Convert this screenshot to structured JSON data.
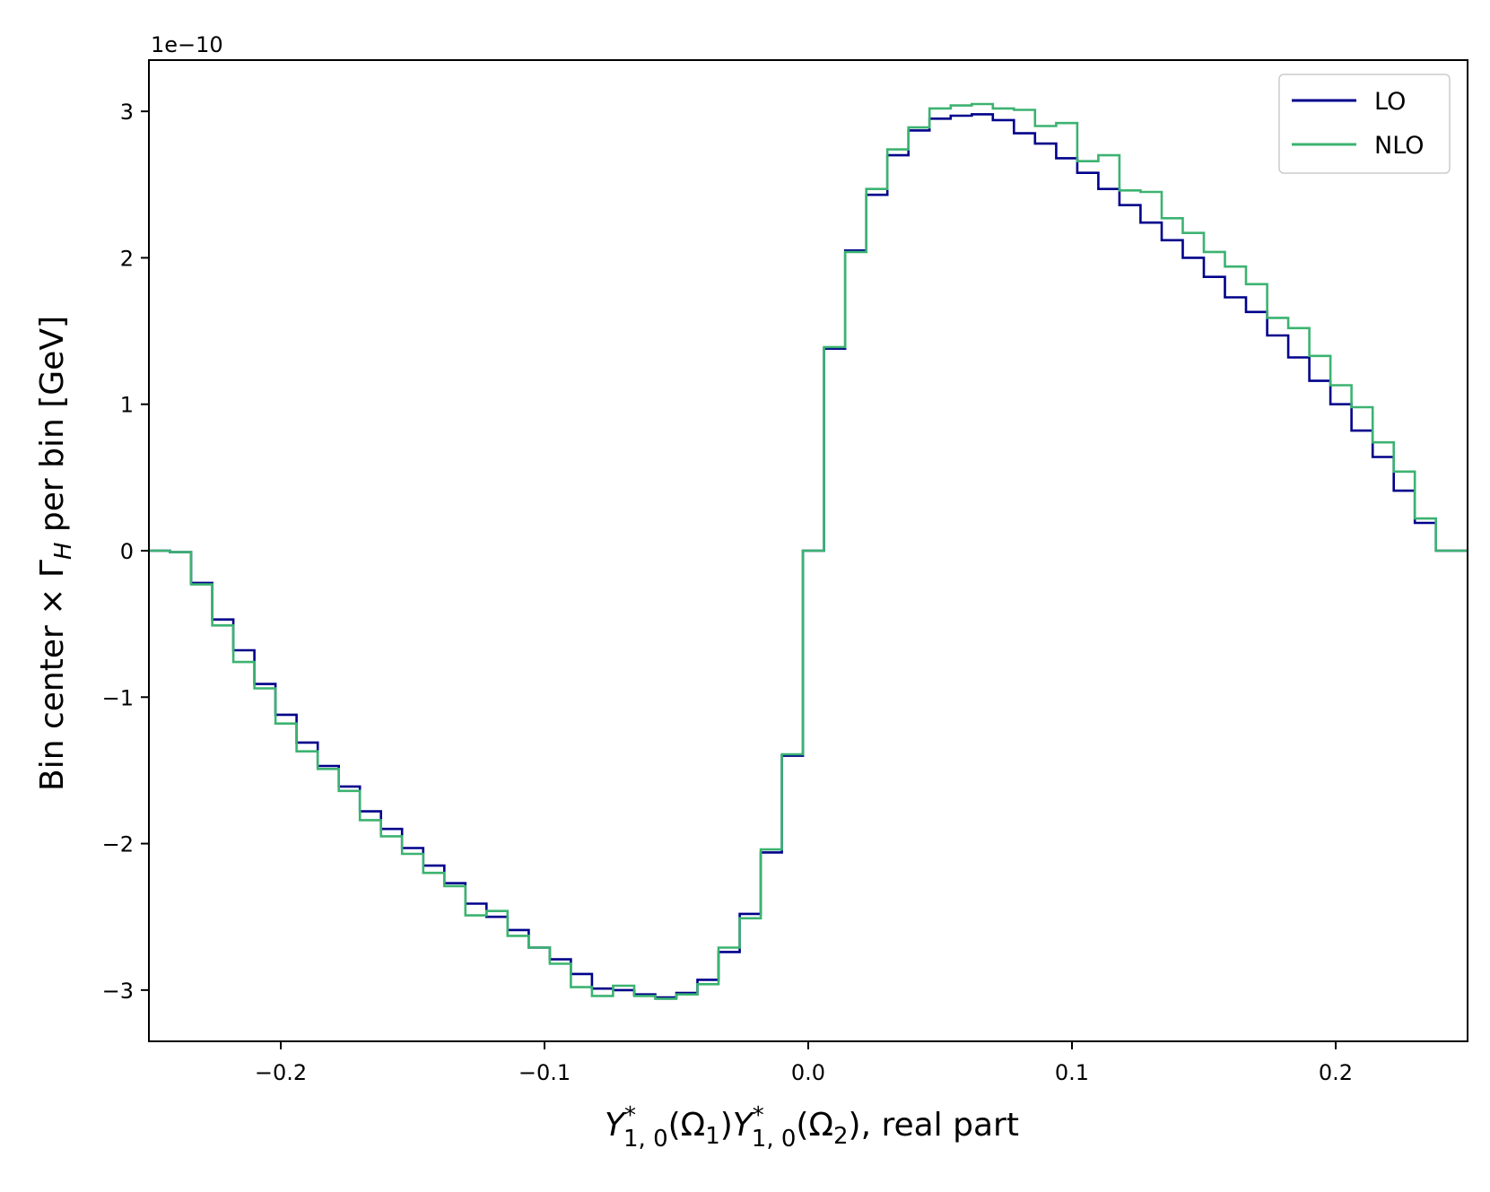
{
  "chart_data": {
    "type": "line",
    "step": "post",
    "offset_label": "1e−10",
    "ylabel": {
      "pre": "Bin center × Γ",
      "sub": "H",
      "post": " per bin [GeV]"
    },
    "xlabel": {
      "Y": "Y",
      "star": "*",
      "sub": "1, 0",
      "omega1": "(Ω",
      "omega1_sub": "1",
      "close": ")",
      "omega2": "(Ω",
      "omega2_sub": "2",
      "tail": "), real part"
    },
    "xlim": [
      -0.25,
      0.25
    ],
    "ylim": [
      -3.35,
      3.35
    ],
    "xticks": [
      -0.2,
      -0.1,
      0.0,
      0.1,
      0.2
    ],
    "xtick_labels": [
      "−0.2",
      "−0.1",
      "0.0",
      "0.1",
      "0.2"
    ],
    "yticks": [
      -3,
      -2,
      -1,
      0,
      1,
      2,
      3
    ],
    "ytick_labels": [
      "−3",
      "−2",
      "−1",
      "0",
      "1",
      "2",
      "3"
    ],
    "legend_position": "upper right",
    "bin_edges": [
      -0.25,
      -0.242,
      -0.234,
      -0.226,
      -0.218,
      -0.21,
      -0.202,
      -0.194,
      -0.186,
      -0.178,
      -0.17,
      -0.162,
      -0.154,
      -0.146,
      -0.138,
      -0.13,
      -0.122,
      -0.114,
      -0.106,
      -0.098,
      -0.09,
      -0.082,
      -0.074,
      -0.066,
      -0.058,
      -0.05,
      -0.042,
      -0.034,
      -0.026,
      -0.018,
      -0.01,
      -0.002,
      0.006,
      0.014,
      0.022,
      0.03,
      0.038,
      0.046,
      0.054,
      0.062,
      0.07,
      0.078,
      0.086,
      0.094,
      0.102,
      0.11,
      0.118,
      0.126,
      0.134,
      0.142,
      0.15,
      0.158,
      0.166,
      0.174,
      0.182,
      0.19,
      0.198,
      0.206,
      0.214,
      0.222,
      0.23,
      0.238,
      0.25
    ],
    "series": [
      {
        "name": "LO",
        "color": "#00008b",
        "values": [
          0.0,
          -0.01,
          -0.22,
          -0.47,
          -0.68,
          -0.91,
          -1.12,
          -1.31,
          -1.47,
          -1.61,
          -1.78,
          -1.9,
          -2.03,
          -2.15,
          -2.27,
          -2.41,
          -2.5,
          -2.59,
          -2.71,
          -2.79,
          -2.89,
          -2.99,
          -3.0,
          -3.03,
          -3.05,
          -3.02,
          -2.93,
          -2.74,
          -2.48,
          -2.06,
          -1.4,
          0.0,
          1.38,
          2.05,
          2.43,
          2.7,
          2.87,
          2.95,
          2.97,
          2.98,
          2.94,
          2.85,
          2.78,
          2.68,
          2.58,
          2.47,
          2.36,
          2.24,
          2.12,
          2.0,
          1.87,
          1.73,
          1.63,
          1.47,
          1.32,
          1.16,
          1.0,
          0.82,
          0.64,
          0.41,
          0.19,
          0.0
        ]
      },
      {
        "name": "NLO",
        "color": "#3cb371",
        "values": [
          0.0,
          -0.01,
          -0.23,
          -0.51,
          -0.76,
          -0.94,
          -1.18,
          -1.37,
          -1.49,
          -1.64,
          -1.84,
          -1.95,
          -2.07,
          -2.2,
          -2.29,
          -2.49,
          -2.46,
          -2.63,
          -2.71,
          -2.82,
          -2.98,
          -3.04,
          -2.97,
          -3.04,
          -3.06,
          -3.03,
          -2.96,
          -2.71,
          -2.51,
          -2.04,
          -1.39,
          0.0,
          1.39,
          2.04,
          2.47,
          2.74,
          2.89,
          3.02,
          3.04,
          3.05,
          3.02,
          3.01,
          2.9,
          2.92,
          2.66,
          2.7,
          2.46,
          2.45,
          2.27,
          2.17,
          2.04,
          1.94,
          1.82,
          1.59,
          1.52,
          1.33,
          1.13,
          0.98,
          0.74,
          0.54,
          0.22,
          0.0
        ]
      }
    ]
  }
}
